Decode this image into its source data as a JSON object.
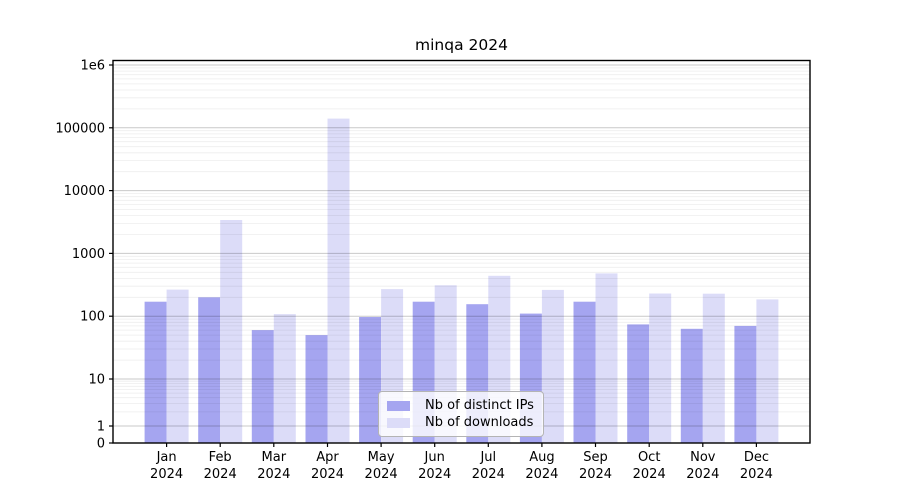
{
  "chart_data": {
    "type": "bar",
    "title": "minqa 2024",
    "categories": [
      "Jan",
      "Feb",
      "Mar",
      "Apr",
      "May",
      "Jun",
      "Jul",
      "Aug",
      "Sep",
      "Oct",
      "Nov",
      "Dec"
    ],
    "category_year": "2024",
    "series": [
      {
        "name": "Nb of distinct IPs",
        "key": "distinct-ips",
        "color": "#a5a5f0",
        "values": [
          170,
          200,
          60,
          50,
          97,
          170,
          155,
          110,
          170,
          74,
          63,
          70
        ]
      },
      {
        "name": "Nb of downloads",
        "key": "downloads",
        "color": "#dcdcf8",
        "values": [
          265,
          3400,
          108,
          140000,
          270,
          310,
          440,
          262,
          480,
          230,
          228,
          185
        ]
      }
    ],
    "yscale": "symlog",
    "ylim": [
      0,
      1200000
    ],
    "yticks": [
      {
        "value": 0,
        "label": "0"
      },
      {
        "value": 1,
        "label": "1"
      },
      {
        "value": 10,
        "label": "10"
      },
      {
        "value": 100,
        "label": "100"
      },
      {
        "value": 1000,
        "label": "1000"
      },
      {
        "value": 10000,
        "label": "10000"
      },
      {
        "value": 100000,
        "label": "100000"
      },
      {
        "value": 1000000,
        "label": "1e6"
      }
    ],
    "grid": true,
    "legend_position": "lower center",
    "axis_color": "#000000",
    "major_grid_color": "#c8c8c8",
    "minor_grid_color": "#ececec"
  }
}
